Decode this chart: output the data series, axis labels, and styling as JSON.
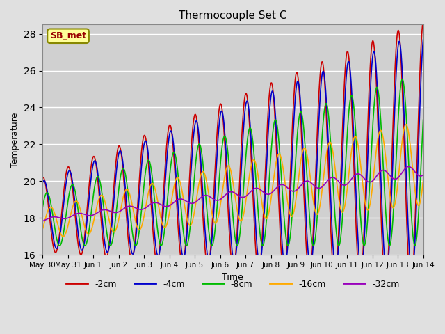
{
  "title": "Thermocouple Set C",
  "xlabel": "Time",
  "ylabel": "Temperature",
  "ylim": [
    16,
    28.5
  ],
  "yticks": [
    16,
    18,
    20,
    22,
    24,
    26,
    28
  ],
  "annotation": "SB_met",
  "fig_facecolor": "#e0e0e0",
  "plot_facecolor": "#d0d0d0",
  "lines": {
    "-2cm": {
      "color": "#cc0000",
      "lw": 1.2
    },
    "-4cm": {
      "color": "#0000cc",
      "lw": 1.2
    },
    "-8cm": {
      "color": "#00bb00",
      "lw": 1.2
    },
    "-16cm": {
      "color": "#ffaa00",
      "lw": 1.2
    },
    "-32cm": {
      "color": "#9900bb",
      "lw": 1.2
    }
  },
  "legend_order": [
    "-2cm",
    "-4cm",
    "-8cm",
    "-16cm",
    "-32cm"
  ],
  "x_tick_labels": [
    "May 30",
    "May 31",
    "Jun 1",
    "Jun 2",
    "Jun 3",
    "Jun 4",
    "Jun 5",
    "Jun 6",
    "Jun 7",
    "Jun 8",
    "Jun 9",
    "Jun 10",
    "Jun 11",
    "Jun 12",
    "Jun 13",
    "Jun 14"
  ]
}
